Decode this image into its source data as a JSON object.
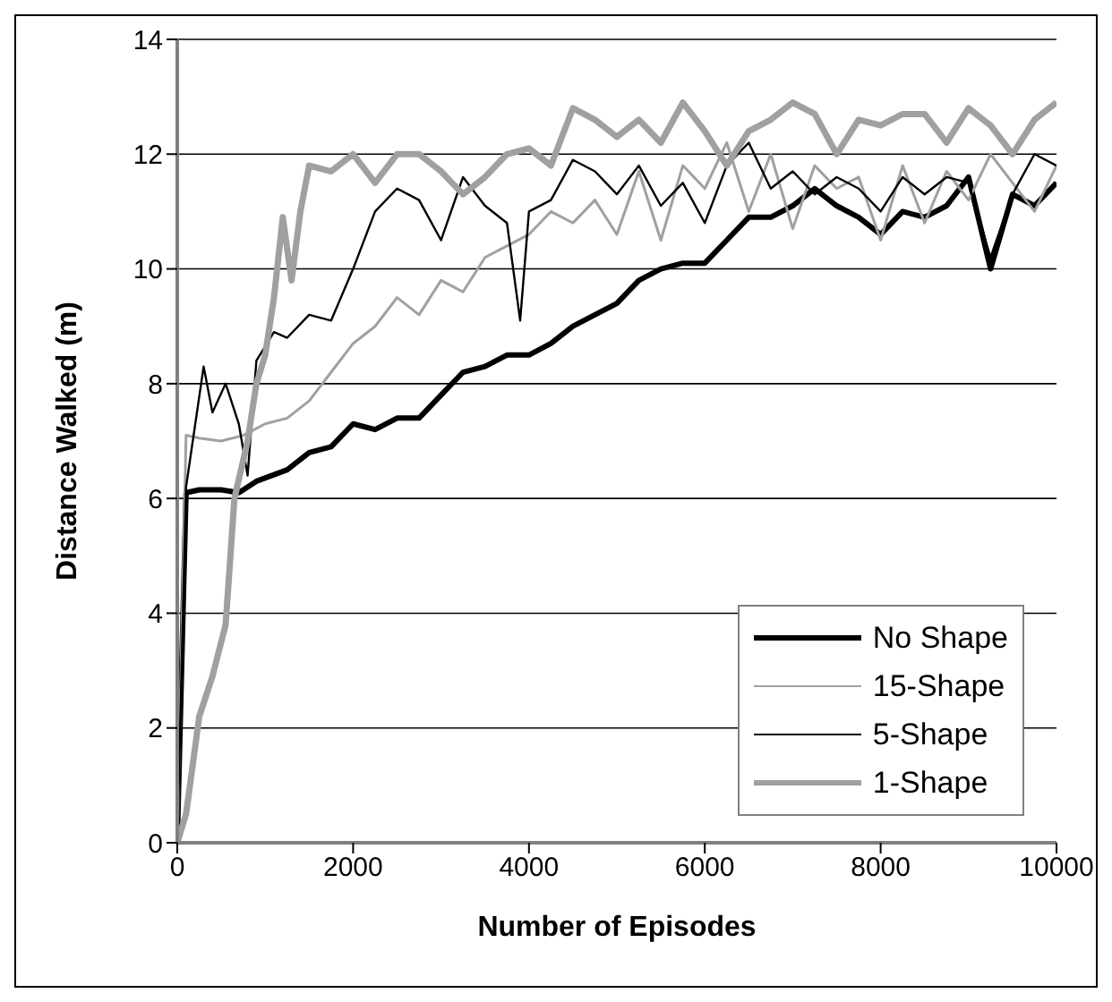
{
  "chart_data": {
    "type": "line",
    "xlabel": "Number of Episodes",
    "ylabel": "Distance Walked (m)",
    "xlim": [
      0,
      10000
    ],
    "xticks": [
      0,
      2000,
      4000,
      6000,
      8000,
      10000
    ],
    "ylim": [
      0,
      14
    ],
    "yticks": [
      0,
      2,
      4,
      6,
      8,
      10,
      12,
      14
    ],
    "grid": "y",
    "legend": "bottom right",
    "marker": "none",
    "line_style": "solid",
    "series": [
      {
        "name": "No Shape",
        "color": "#000000",
        "x": [
          0,
          100,
          250,
          500,
          700,
          900,
          1250,
          1500,
          1750,
          2000,
          2250,
          2500,
          2750,
          3000,
          3250,
          3500,
          3750,
          4000,
          4250,
          4500,
          4750,
          5000,
          5250,
          5500,
          5750,
          6000,
          6250,
          6500,
          6750,
          7000,
          7250,
          7500,
          7750,
          8000,
          8250,
          8500,
          8750,
          9000,
          9250,
          9500,
          9750,
          10000
        ],
        "values": [
          0,
          6.1,
          6.15,
          6.15,
          6.1,
          6.3,
          6.5,
          6.8,
          6.9,
          7.3,
          7.2,
          7.4,
          7.4,
          7.8,
          8.2,
          8.3,
          8.5,
          8.5,
          8.7,
          9.0,
          9.2,
          9.4,
          9.8,
          10.0,
          10.1,
          10.1,
          10.5,
          10.9,
          10.9,
          11.1,
          11.4,
          11.1,
          10.9,
          10.6,
          11.0,
          10.9,
          11.1,
          11.6,
          10.0,
          11.3,
          11.1,
          11.5
        ]
      },
      {
        "name": "15-Shape",
        "color": "#a0a0a0",
        "x": [
          0,
          100,
          250,
          500,
          750,
          1000,
          1250,
          1500,
          1750,
          2000,
          2250,
          2500,
          2750,
          3000,
          3250,
          3500,
          3750,
          4000,
          4250,
          4500,
          4750,
          5000,
          5250,
          5500,
          5750,
          6000,
          6250,
          6500,
          6750,
          7000,
          7250,
          7500,
          7750,
          8000,
          8250,
          8500,
          8750,
          9000,
          9250,
          9500,
          9750,
          10000
        ],
        "values": [
          0,
          7.1,
          7.05,
          7.0,
          7.1,
          7.3,
          7.4,
          7.7,
          8.2,
          8.7,
          9.0,
          9.5,
          9.2,
          9.8,
          9.6,
          10.2,
          10.4,
          10.6,
          11.0,
          10.8,
          11.2,
          10.6,
          11.7,
          10.5,
          11.8,
          11.4,
          12.2,
          11.0,
          12.0,
          10.7,
          11.8,
          11.4,
          11.6,
          10.5,
          11.8,
          10.8,
          11.7,
          11.2,
          12.0,
          11.5,
          11.0,
          11.8
        ]
      },
      {
        "name": "5-Shape",
        "color": "#000000",
        "x": [
          0,
          100,
          300,
          400,
          550,
          700,
          800,
          900,
          1100,
          1250,
          1500,
          1750,
          2000,
          2250,
          2500,
          2750,
          3000,
          3250,
          3500,
          3750,
          3900,
          4000,
          4250,
          4500,
          4750,
          5000,
          5250,
          5500,
          5750,
          6000,
          6250,
          6500,
          6750,
          7000,
          7250,
          7500,
          7750,
          8000,
          8250,
          8500,
          8750,
          9000,
          9250,
          9500,
          9750,
          10000
        ],
        "values": [
          0,
          6.2,
          8.3,
          7.5,
          8.0,
          7.3,
          6.4,
          8.4,
          8.9,
          8.8,
          9.2,
          9.1,
          10.0,
          11.0,
          11.4,
          11.2,
          10.5,
          11.6,
          11.1,
          10.8,
          9.1,
          11.0,
          11.2,
          11.9,
          11.7,
          11.3,
          11.8,
          11.1,
          11.5,
          10.8,
          11.8,
          12.2,
          11.4,
          11.7,
          11.3,
          11.6,
          11.4,
          11.0,
          11.6,
          11.3,
          11.6,
          11.5,
          10.2,
          11.3,
          12.0,
          11.8
        ]
      },
      {
        "name": "1-Shape",
        "color": "#a0a0a0",
        "x": [
          0,
          100,
          250,
          400,
          550,
          650,
          800,
          900,
          1000,
          1100,
          1200,
          1300,
          1400,
          1500,
          1750,
          2000,
          2250,
          2500,
          2750,
          3000,
          3250,
          3500,
          3750,
          4000,
          4250,
          4500,
          4750,
          5000,
          5250,
          5500,
          5750,
          6000,
          6250,
          6500,
          6750,
          7000,
          7250,
          7500,
          7750,
          8000,
          8250,
          8500,
          8750,
          9000,
          9250,
          9500,
          9750,
          10000
        ],
        "values": [
          0,
          0.5,
          2.2,
          2.9,
          3.8,
          6.0,
          7.0,
          8.0,
          8.5,
          9.5,
          10.9,
          9.8,
          11.0,
          11.8,
          11.7,
          12.0,
          11.5,
          12.0,
          12.0,
          11.7,
          11.3,
          11.6,
          12.0,
          12.1,
          11.8,
          12.8,
          12.6,
          12.3,
          12.6,
          12.2,
          12.9,
          12.4,
          11.8,
          12.4,
          12.6,
          12.9,
          12.7,
          12.0,
          12.6,
          12.5,
          12.7,
          12.7,
          12.2,
          12.8,
          12.5,
          12.0,
          12.6,
          12.9
        ]
      }
    ]
  }
}
